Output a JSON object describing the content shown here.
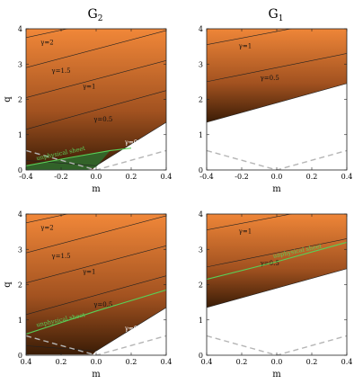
{
  "titles": [
    "G",
    "G"
  ],
  "title_subscripts": [
    "2",
    "1"
  ],
  "chart_data": [
    {
      "type": "contour",
      "panel": "top-left",
      "xlabel": "m",
      "ylabel": "q",
      "xlim": [
        -0.4,
        0.4
      ],
      "ylim": [
        0,
        4
      ],
      "xticks": [
        -0.4,
        -0.2,
        0.0,
        0.2,
        0.4
      ],
      "xtick_labels": [
        "-0.4",
        "-0.2",
        "0.0",
        "0.2",
        "0.4"
      ],
      "yticks": [
        0,
        1,
        2,
        3,
        4
      ],
      "contours": [
        {
          "label": "γ=2",
          "left_q": 3.75,
          "right_q": 4.6,
          "label_at": [
            -0.28,
            3.55
          ]
        },
        {
          "label": "γ=1.5",
          "left_q": 2.9,
          "right_q": 3.95,
          "label_at": [
            -0.2,
            2.75
          ]
        },
        {
          "label": "γ=1",
          "left_q": 2.05,
          "right_q": 3.1,
          "label_at": [
            -0.04,
            2.3
          ]
        },
        {
          "label": "γ=0.5",
          "left_q": 1.15,
          "right_q": 2.25,
          "label_at": [
            0.04,
            1.38
          ]
        },
        {
          "label": "γ=0",
          "left_q": 0.12,
          "right_q": 1.35,
          "vertex_m": 0.0,
          "label_at": [
            0.2,
            0.73
          ]
        }
      ],
      "unphysical_sheet": {
        "label": "unphysical sheet",
        "line": [
          [
            -0.4,
            0.12
          ],
          [
            -0.15,
            0.35
          ],
          [
            0.08,
            0.55
          ],
          [
            0.2,
            0.62
          ]
        ],
        "label_at": [
          -0.2,
          0.42
        ]
      },
      "dashed_threshold": [
        [
          -0.4,
          0.55
        ],
        [
          0.0,
          0.0
        ],
        [
          0.4,
          0.55
        ]
      ],
      "fill_colors": [
        "#ffffff",
        "#f07e2c",
        "#e8c4a0",
        "#c8ddd2",
        "#7fb1d8",
        "#5594c4",
        "#2a5a9a"
      ]
    },
    {
      "type": "contour",
      "panel": "top-right",
      "xlabel": "m",
      "ylabel": "",
      "xlim": [
        -0.4,
        0.4
      ],
      "ylim": [
        0,
        4
      ],
      "xticks": [
        -0.4,
        -0.2,
        0.0,
        0.2,
        0.4
      ],
      "xtick_labels": [
        "-0.4",
        "-0.2",
        "0.0",
        "0.2",
        "0.4"
      ],
      "yticks": [
        0,
        1,
        2,
        3,
        4
      ],
      "contours": [
        {
          "label": "γ=1",
          "left_q": 3.55,
          "right_q": 4.3,
          "label_at": [
            -0.18,
            3.45
          ]
        },
        {
          "label": "γ=0.5",
          "left_q": 2.5,
          "right_q": 3.3,
          "label_at": [
            -0.04,
            2.55
          ]
        },
        {
          "label": "γ=0",
          "left_q": 1.35,
          "right_q": 2.45,
          "label_at": [
            -0.07,
            1.58
          ]
        }
      ],
      "dashed_threshold": [
        [
          -0.4,
          0.55
        ],
        [
          0.0,
          0.0
        ],
        [
          0.4,
          0.55
        ]
      ],
      "fill_colors": [
        "#ffffff",
        "#f07e2c",
        "#e8d4b0",
        "#a8cce0"
      ]
    },
    {
      "type": "contour",
      "panel": "bottom-left",
      "xlabel": "m",
      "ylabel": "q",
      "xlim": [
        0.4,
        -0.4
      ],
      "ylim": [
        0,
        4
      ],
      "xticks": [
        0.4,
        0.2,
        0.0,
        0.2,
        0.4
      ],
      "xtick_labels": [
        "0.4",
        "0.2",
        "0.0",
        "0.2",
        "0.4"
      ],
      "yticks": [
        0,
        1,
        2,
        3,
        4
      ],
      "contours": [
        {
          "label": "γ=2",
          "left_q": 3.75,
          "right_q": 4.6,
          "label_at": [
            -0.28,
            3.55
          ]
        },
        {
          "label": "γ=1.5",
          "left_q": 2.9,
          "right_q": 3.95,
          "label_at": [
            -0.2,
            2.75
          ]
        },
        {
          "label": "γ=1",
          "left_q": 2.05,
          "right_q": 3.1,
          "label_at": [
            -0.04,
            2.3
          ]
        },
        {
          "label": "γ=0.5",
          "left_q": 1.15,
          "right_q": 2.25,
          "label_at": [
            0.04,
            1.38
          ]
        },
        {
          "label": "γ=0",
          "left_q": 0.12,
          "right_q": 1.35,
          "vertex_m": 0.0,
          "label_at": [
            0.2,
            0.7
          ]
        }
      ],
      "unphysical_sheet": {
        "label": "unphysical sheet",
        "line": [
          [
            -0.4,
            0.6
          ],
          [
            0.0,
            1.25
          ],
          [
            0.4,
            1.85
          ]
        ],
        "label_at": [
          -0.2,
          0.95
        ]
      },
      "dashed_threshold": [
        [
          -0.4,
          0.55
        ],
        [
          0.0,
          0.0
        ],
        [
          0.4,
          0.55
        ]
      ],
      "fill_colors": [
        "#ffffff",
        "#f07e2c",
        "#e8c4a0",
        "#c8ddd2",
        "#7fb1d8",
        "#5594c4",
        "#2a5a9a"
      ]
    },
    {
      "type": "contour",
      "panel": "bottom-right",
      "xlabel": "m",
      "ylabel": "",
      "xlim": [
        0.4,
        -0.4
      ],
      "ylim": [
        0,
        4
      ],
      "xticks": [
        0.4,
        0.2,
        0.0,
        0.2,
        0.4
      ],
      "xtick_labels": [
        "0.4",
        "0.2",
        "0.0",
        "0.2",
        "0.4"
      ],
      "yticks": [
        0,
        1,
        2,
        3,
        4
      ],
      "contours": [
        {
          "label": "γ=1",
          "left_q": 3.55,
          "right_q": 4.3,
          "label_at": [
            -0.18,
            3.45
          ]
        },
        {
          "label": "γ=0.5",
          "left_q": 2.5,
          "right_q": 3.3,
          "label_at": [
            -0.04,
            2.55
          ]
        },
        {
          "label": "γ=0",
          "left_q": 1.35,
          "right_q": 2.45,
          "label_at": [
            -0.07,
            1.58
          ]
        }
      ],
      "unphysical_sheet": {
        "label": "unphysical sheet",
        "line": [
          [
            -0.4,
            2.15
          ],
          [
            0.0,
            2.65
          ],
          [
            0.4,
            3.2
          ]
        ],
        "label_at": [
          0.12,
          2.9
        ]
      },
      "dashed_threshold": [
        [
          -0.4,
          0.55
        ],
        [
          0.0,
          0.0
        ],
        [
          0.4,
          0.55
        ]
      ],
      "fill_colors": [
        "#ffffff",
        "#f07e2c",
        "#e8d4b0",
        "#a8cce0"
      ]
    }
  ]
}
